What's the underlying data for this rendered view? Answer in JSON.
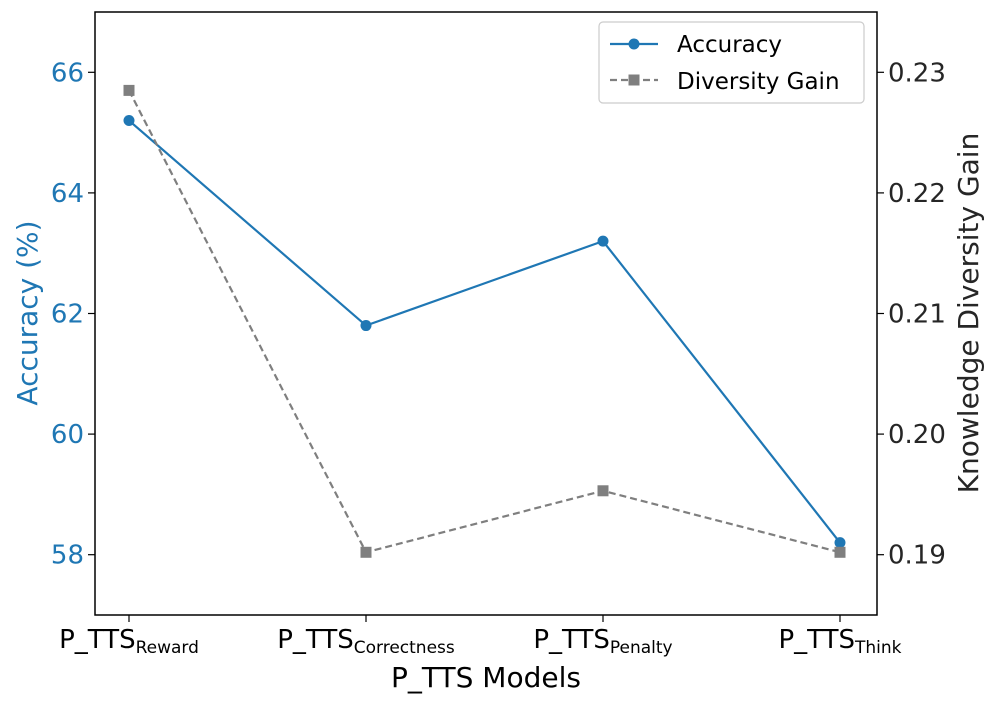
{
  "chart_data": {
    "type": "line",
    "title": "",
    "xlabel": "P_TTS Models",
    "categories": [
      {
        "base": "P_TTS",
        "sub": "Reward"
      },
      {
        "base": "P_TTS",
        "sub": "Correctness"
      },
      {
        "base": "P_TTS",
        "sub": "Penalty"
      },
      {
        "base": "P_TTS",
        "sub": "Think"
      }
    ],
    "y_left": {
      "label": "Accuracy (%)",
      "ylim": [
        57.0,
        67.0
      ],
      "ticks": [
        "58",
        "60",
        "62",
        "64",
        "66"
      ],
      "color": "#1f77b4"
    },
    "y_right": {
      "label": "Knowledge Diversity Gain",
      "ylim": [
        0.185,
        0.235
      ],
      "ticks": [
        "0.19",
        "0.20",
        "0.21",
        "0.22",
        "0.23"
      ],
      "color": "#262626"
    },
    "series": [
      {
        "name": "Accuracy",
        "axis": "left",
        "values": [
          65.2,
          61.8,
          63.2,
          58.2
        ],
        "color": "#1f77b4",
        "marker": "circle",
        "linestyle": "solid"
      },
      {
        "name": "Diversity Gain",
        "axis": "right",
        "values": [
          0.2285,
          0.1902,
          0.1953,
          0.1902
        ],
        "color": "#7f7f7f",
        "marker": "square",
        "linestyle": "dashed"
      }
    ],
    "legend": {
      "position": "top-right",
      "entries": [
        "Accuracy",
        "Diversity Gain"
      ]
    }
  }
}
